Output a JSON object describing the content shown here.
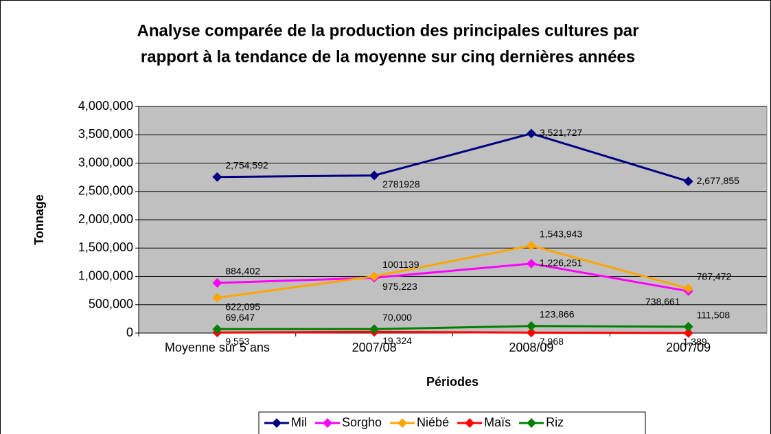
{
  "chart_data": {
    "type": "line",
    "title": [
      "Analyse comparée  de la production des principales cultures par",
      "rapport à la tendance de la moyenne sur cinq dernières années"
    ],
    "x_label": "Périodes",
    "y_label": "Tonnage",
    "categories": [
      "Moyenne sur 5 ans",
      "2007/08",
      "2008/09",
      "2007/09"
    ],
    "ylim": [
      0,
      4000000
    ],
    "yticks": [
      0,
      {
        "value": 500000,
        "label": "500,000"
      },
      {
        "value": 1000000,
        "label": "1,000,000"
      },
      {
        "value": 1500000,
        "label": "1,500,000"
      },
      {
        "value": 2000000,
        "label": "2,000,000"
      },
      {
        "value": 2500000,
        "label": "2,500,000"
      },
      {
        "value": 3000000,
        "label": "3,000,000"
      },
      {
        "value": 3500000,
        "label": "3,500,000"
      },
      {
        "value": 4000000,
        "label": "4,000,000"
      }
    ],
    "grid": true,
    "legend": "bottom",
    "series": [
      {
        "name": "Mil",
        "color": "#000080",
        "values": [
          2754592,
          2781928,
          3521727,
          2677855
        ],
        "value_labels": [
          "2,754,592",
          "2781928",
          "3,521,727",
          "2,677,855"
        ]
      },
      {
        "name": "Sorgho",
        "color": "#ff00ff",
        "values": [
          884402,
          975223,
          1226251,
          738661
        ],
        "value_labels": [
          "884,402",
          "975,223",
          "1,226,251",
          "738,661"
        ]
      },
      {
        "name": "Niébé",
        "color": "#ffa500",
        "values": [
          622095,
          1001139,
          1543943,
          787472
        ],
        "value_labels": [
          "622,095",
          "1001139",
          "1,543,943",
          "787,472"
        ]
      },
      {
        "name": "Maïs",
        "color": "#ff0000",
        "values": [
          9553,
          19324,
          7968,
          1389
        ],
        "value_labels": [
          "9,553",
          "19,324",
          "7,968",
          "1,389"
        ]
      },
      {
        "name": "Riz",
        "color": "#008000",
        "values": [
          69647,
          70000,
          123866,
          111508
        ],
        "value_labels": [
          "69,647",
          "70,000",
          "123,866",
          "111,508"
        ]
      }
    ]
  }
}
